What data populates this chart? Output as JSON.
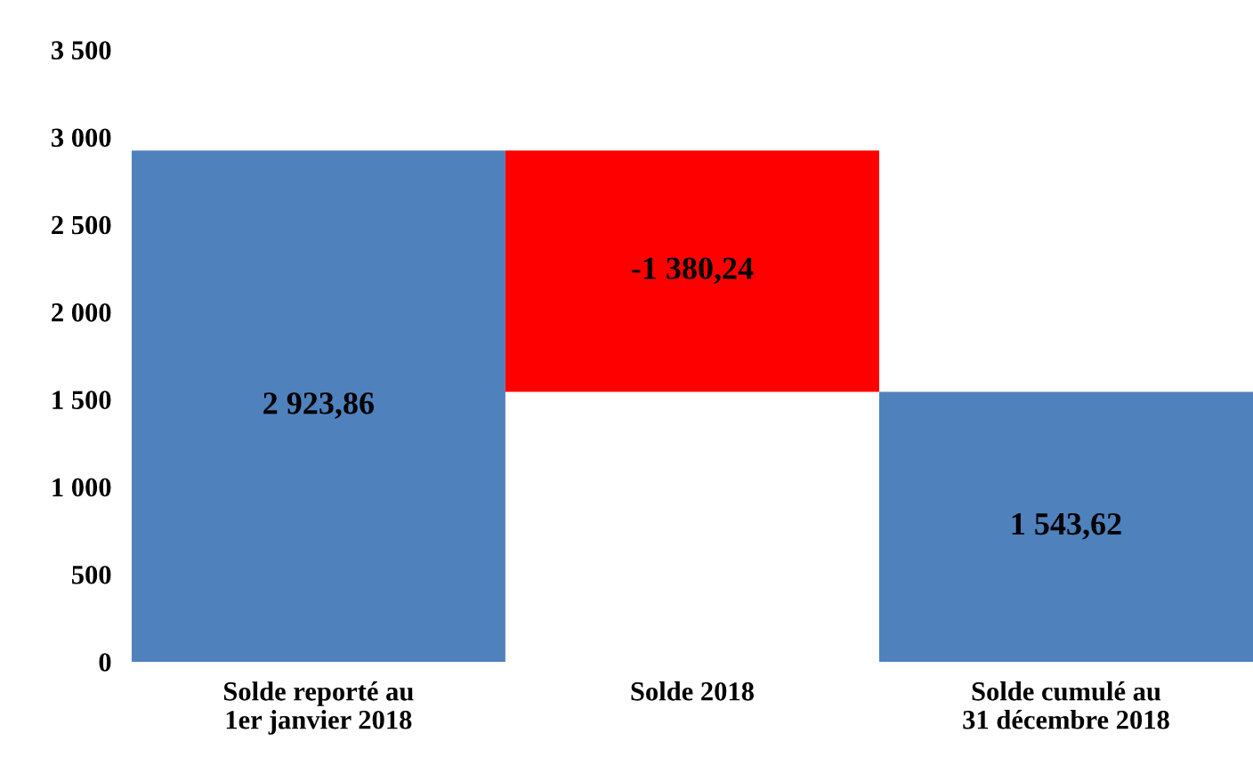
{
  "chart_data": {
    "type": "bar",
    "categories": [
      "Solde reporté au\n1er janvier 2018",
      "Solde 2018",
      "Solde cumulé au\n31 décembre 2018"
    ],
    "values": [
      2923.86,
      -1380.24,
      1543.62
    ],
    "base": [
      0,
      2923.86,
      0
    ],
    "colors": [
      "#4f81bd",
      "#ff0000",
      "#4f81bd"
    ],
    "value_labels": [
      "2 923,86",
      "-1 380,24",
      "1 543,62"
    ],
    "ylim": [
      0,
      3500
    ],
    "yticks": [
      {
        "value": 0,
        "label": "0"
      },
      {
        "value": 500,
        "label": "500"
      },
      {
        "value": 1000,
        "label": "1 000"
      },
      {
        "value": 1500,
        "label": "1 500"
      },
      {
        "value": 2000,
        "label": "2 000"
      },
      {
        "value": 2500,
        "label": "2 500"
      },
      {
        "value": 3000,
        "label": "3 000"
      },
      {
        "value": 3500,
        "label": "3 500"
      }
    ],
    "grid": false,
    "legend": false
  }
}
